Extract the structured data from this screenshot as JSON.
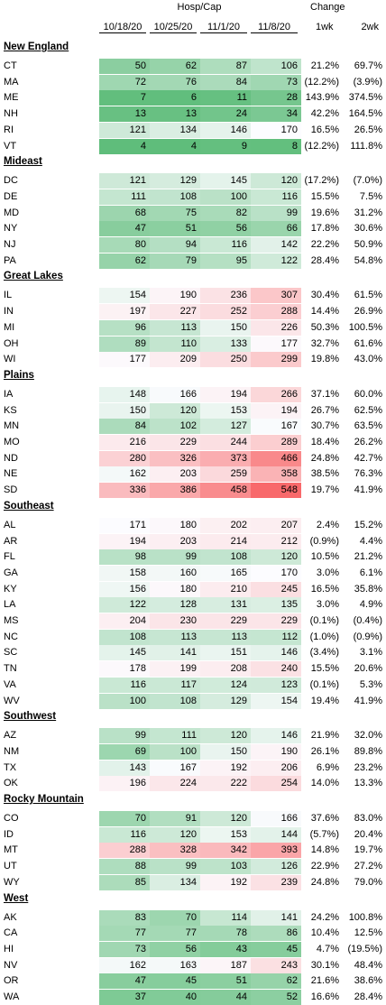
{
  "header": {
    "group_label": "Hosp/Cap",
    "change_label": "Change",
    "dates": [
      "10/18/20",
      "10/25/20",
      "11/1/20",
      "11/8/20"
    ],
    "wk1": "1wk",
    "wk2": "2wk"
  },
  "regions": [
    {
      "name": "New England",
      "rows": [
        {
          "state": "CT",
          "v": [
            "50",
            "62",
            "87",
            "106"
          ],
          "w1": "21.2%",
          "w2": "69.7%"
        },
        {
          "state": "MA",
          "v": [
            "72",
            "76",
            "84",
            "73"
          ],
          "w1": "(12.2%)",
          "w2": "(3.9%)"
        },
        {
          "state": "ME",
          "v": [
            "7",
            "6",
            "11",
            "28"
          ],
          "w1": "143.9%",
          "w2": "374.5%"
        },
        {
          "state": "NH",
          "v": [
            "13",
            "13",
            "24",
            "34"
          ],
          "w1": "42.2%",
          "w2": "164.5%"
        },
        {
          "state": "RI",
          "v": [
            "121",
            "134",
            "146",
            "170"
          ],
          "w1": "16.5%",
          "w2": "26.5%"
        },
        {
          "state": "VT",
          "v": [
            "4",
            "4",
            "9",
            "8"
          ],
          "w1": "(12.2%)",
          "w2": "111.8%"
        }
      ]
    },
    {
      "name": "Mideast",
      "rows": [
        {
          "state": "DC",
          "v": [
            "121",
            "129",
            "145",
            "120"
          ],
          "w1": "(17.2%)",
          "w2": "(7.0%)"
        },
        {
          "state": "DE",
          "v": [
            "111",
            "108",
            "100",
            "116"
          ],
          "w1": "15.5%",
          "w2": "7.5%"
        },
        {
          "state": "MD",
          "v": [
            "68",
            "75",
            "82",
            "99"
          ],
          "w1": "19.6%",
          "w2": "31.2%"
        },
        {
          "state": "NY",
          "v": [
            "47",
            "51",
            "56",
            "66"
          ],
          "w1": "17.8%",
          "w2": "30.6%"
        },
        {
          "state": "NJ",
          "v": [
            "80",
            "94",
            "116",
            "142"
          ],
          "w1": "22.2%",
          "w2": "50.9%"
        },
        {
          "state": "PA",
          "v": [
            "62",
            "79",
            "95",
            "122"
          ],
          "w1": "28.4%",
          "w2": "54.8%"
        }
      ]
    },
    {
      "name": "Great Lakes",
      "rows": [
        {
          "state": "IL",
          "v": [
            "154",
            "190",
            "236",
            "307"
          ],
          "w1": "30.4%",
          "w2": "61.5%"
        },
        {
          "state": "IN",
          "v": [
            "197",
            "227",
            "252",
            "288"
          ],
          "w1": "14.4%",
          "w2": "26.9%"
        },
        {
          "state": "MI",
          "v": [
            "96",
            "113",
            "150",
            "226"
          ],
          "w1": "50.3%",
          "w2": "100.5%"
        },
        {
          "state": "OH",
          "v": [
            "89",
            "110",
            "133",
            "177"
          ],
          "w1": "32.7%",
          "w2": "61.6%"
        },
        {
          "state": "WI",
          "v": [
            "177",
            "209",
            "250",
            "299"
          ],
          "w1": "19.8%",
          "w2": "43.0%"
        }
      ]
    },
    {
      "name": "Plains",
      "rows": [
        {
          "state": "IA",
          "v": [
            "148",
            "166",
            "194",
            "266"
          ],
          "w1": "37.1%",
          "w2": "60.0%"
        },
        {
          "state": "KS",
          "v": [
            "150",
            "120",
            "153",
            "194"
          ],
          "w1": "26.7%",
          "w2": "62.5%"
        },
        {
          "state": "MN",
          "v": [
            "84",
            "102",
            "127",
            "167"
          ],
          "w1": "30.7%",
          "w2": "63.5%"
        },
        {
          "state": "MO",
          "v": [
            "216",
            "229",
            "244",
            "289"
          ],
          "w1": "18.4%",
          "w2": "26.2%"
        },
        {
          "state": "ND",
          "v": [
            "280",
            "326",
            "373",
            "466"
          ],
          "w1": "24.8%",
          "w2": "42.7%"
        },
        {
          "state": "NE",
          "v": [
            "162",
            "203",
            "259",
            "358"
          ],
          "w1": "38.5%",
          "w2": "76.3%"
        },
        {
          "state": "SD",
          "v": [
            "336",
            "386",
            "458",
            "548"
          ],
          "w1": "19.7%",
          "w2": "41.9%"
        }
      ]
    },
    {
      "name": "Southeast",
      "rows": [
        {
          "state": "AL",
          "v": [
            "171",
            "180",
            "202",
            "207"
          ],
          "w1": "2.4%",
          "w2": "15.2%"
        },
        {
          "state": "AR",
          "v": [
            "194",
            "203",
            "214",
            "212"
          ],
          "w1": "(0.9%)",
          "w2": "4.4%"
        },
        {
          "state": "FL",
          "v": [
            "98",
            "99",
            "108",
            "120"
          ],
          "w1": "10.5%",
          "w2": "21.2%"
        },
        {
          "state": "GA",
          "v": [
            "158",
            "160",
            "165",
            "170"
          ],
          "w1": "3.0%",
          "w2": "6.1%"
        },
        {
          "state": "KY",
          "v": [
            "156",
            "180",
            "210",
            "245"
          ],
          "w1": "16.5%",
          "w2": "35.8%"
        },
        {
          "state": "LA",
          "v": [
            "122",
            "128",
            "131",
            "135"
          ],
          "w1": "3.0%",
          "w2": "4.9%"
        },
        {
          "state": "MS",
          "v": [
            "204",
            "230",
            "229",
            "229"
          ],
          "w1": "(0.1%)",
          "w2": "(0.4%)"
        },
        {
          "state": "NC",
          "v": [
            "108",
            "113",
            "113",
            "112"
          ],
          "w1": "(1.0%)",
          "w2": "(0.9%)"
        },
        {
          "state": "SC",
          "v": [
            "145",
            "141",
            "151",
            "146"
          ],
          "w1": "(3.4%)",
          "w2": "3.1%"
        },
        {
          "state": "TN",
          "v": [
            "178",
            "199",
            "208",
            "240"
          ],
          "w1": "15.5%",
          "w2": "20.6%"
        },
        {
          "state": "VA",
          "v": [
            "116",
            "117",
            "124",
            "123"
          ],
          "w1": "(0.1%)",
          "w2": "5.3%"
        },
        {
          "state": "WV",
          "v": [
            "100",
            "108",
            "129",
            "154"
          ],
          "w1": "19.4%",
          "w2": "41.9%"
        }
      ]
    },
    {
      "name": "Southwest",
      "rows": [
        {
          "state": "AZ",
          "v": [
            "99",
            "111",
            "120",
            "146"
          ],
          "w1": "21.9%",
          "w2": "32.0%"
        },
        {
          "state": "NM",
          "v": [
            "69",
            "100",
            "150",
            "190"
          ],
          "w1": "26.1%",
          "w2": "89.8%"
        },
        {
          "state": "TX",
          "v": [
            "143",
            "167",
            "192",
            "206"
          ],
          "w1": "6.9%",
          "w2": "23.2%"
        },
        {
          "state": "OK",
          "v": [
            "196",
            "224",
            "222",
            "254"
          ],
          "w1": "14.0%",
          "w2": "13.3%"
        }
      ]
    },
    {
      "name": "Rocky Mountain",
      "rows": [
        {
          "state": "CO",
          "v": [
            "70",
            "91",
            "120",
            "166"
          ],
          "w1": "37.6%",
          "w2": "83.0%"
        },
        {
          "state": "ID",
          "v": [
            "116",
            "120",
            "153",
            "144"
          ],
          "w1": "(5.7%)",
          "w2": "20.4%"
        },
        {
          "state": "MT",
          "v": [
            "288",
            "328",
            "342",
            "393"
          ],
          "w1": "14.8%",
          "w2": "19.7%"
        },
        {
          "state": "UT",
          "v": [
            "88",
            "99",
            "103",
            "126"
          ],
          "w1": "22.9%",
          "w2": "27.2%"
        },
        {
          "state": "WY",
          "v": [
            "85",
            "134",
            "192",
            "239"
          ],
          "w1": "24.8%",
          "w2": "79.0%"
        }
      ]
    },
    {
      "name": "West",
      "rows": [
        {
          "state": "AK",
          "v": [
            "83",
            "70",
            "114",
            "141"
          ],
          "w1": "24.2%",
          "w2": "100.8%"
        },
        {
          "state": "CA",
          "v": [
            "77",
            "77",
            "78",
            "86"
          ],
          "w1": "10.4%",
          "w2": "12.5%"
        },
        {
          "state": "HI",
          "v": [
            "73",
            "56",
            "43",
            "45"
          ],
          "w1": "4.7%",
          "w2": "(19.5%)"
        },
        {
          "state": "NV",
          "v": [
            "162",
            "163",
            "187",
            "243"
          ],
          "w1": "30.1%",
          "w2": "48.4%"
        },
        {
          "state": "OR",
          "v": [
            "47",
            "45",
            "51",
            "62"
          ],
          "w1": "21.6%",
          "w2": "38.6%"
        },
        {
          "state": "WA",
          "v": [
            "37",
            "40",
            "44",
            "52"
          ],
          "w1": "16.6%",
          "w2": "28.4%"
        }
      ]
    }
  ],
  "colors": {
    "low": "#5fbd7b",
    "mid": "#fcfcff",
    "high": "#f8696b"
  }
}
